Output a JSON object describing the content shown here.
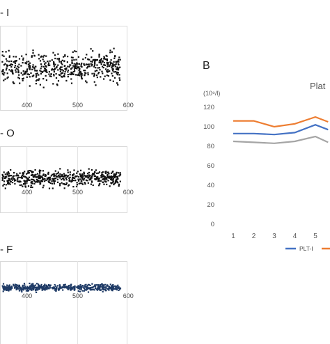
{
  "chart_data": [
    {
      "type": "scatter",
      "panel": "- I",
      "x_ticks": [
        "400",
        "500",
        "600"
      ],
      "xlim": [
        340,
        590
      ],
      "ylim": [
        0,
        1
      ],
      "color": "#111111",
      "band": {
        "center": 0.55,
        "spread": 0.32
      },
      "point_count": 520,
      "grid": true
    },
    {
      "type": "scatter",
      "panel": "- O",
      "x_ticks": [
        "400",
        "500",
        "600"
      ],
      "xlim": [
        340,
        590
      ],
      "ylim": [
        0,
        1
      ],
      "color": "#111111",
      "band": {
        "center": 0.55,
        "spread": 0.22
      },
      "point_count": 520,
      "grid": true
    },
    {
      "type": "scatter",
      "panel": "- F",
      "x_ticks": [
        "400",
        "500",
        "600"
      ],
      "xlim": [
        340,
        590
      ],
      "ylim": [
        0,
        1
      ],
      "color": "#1f3b66",
      "band": {
        "center": 0.5,
        "spread": 0.07
      },
      "point_count": 520,
      "grid": true
    },
    {
      "type": "line",
      "panel": "B",
      "title": "Plat",
      "unit_label": "(10⁹/l)",
      "categories": [
        "1",
        "2",
        "3",
        "4",
        "5"
      ],
      "x_visible_max": 5.6,
      "y_ticks": [
        0,
        20,
        40,
        60,
        80,
        100,
        120
      ],
      "ylim": [
        0,
        120
      ],
      "series": [
        {
          "name": "",
          "color": "#ed7d31",
          "values": [
            106,
            106,
            100,
            103,
            110
          ]
        },
        {
          "name": "PLT-I",
          "color": "#4472c4",
          "values": [
            93,
            93,
            92,
            94,
            102
          ]
        },
        {
          "name": "",
          "color": "#a5a5a5",
          "values": [
            85,
            84,
            83,
            85,
            90
          ]
        }
      ],
      "clipped_after": [
        {
          "color": "#ed7d31",
          "value": 105
        },
        {
          "color": "#4472c4",
          "value": 97
        },
        {
          "color": "#a5a5a5",
          "value": 84
        }
      ],
      "grid": false
    }
  ]
}
